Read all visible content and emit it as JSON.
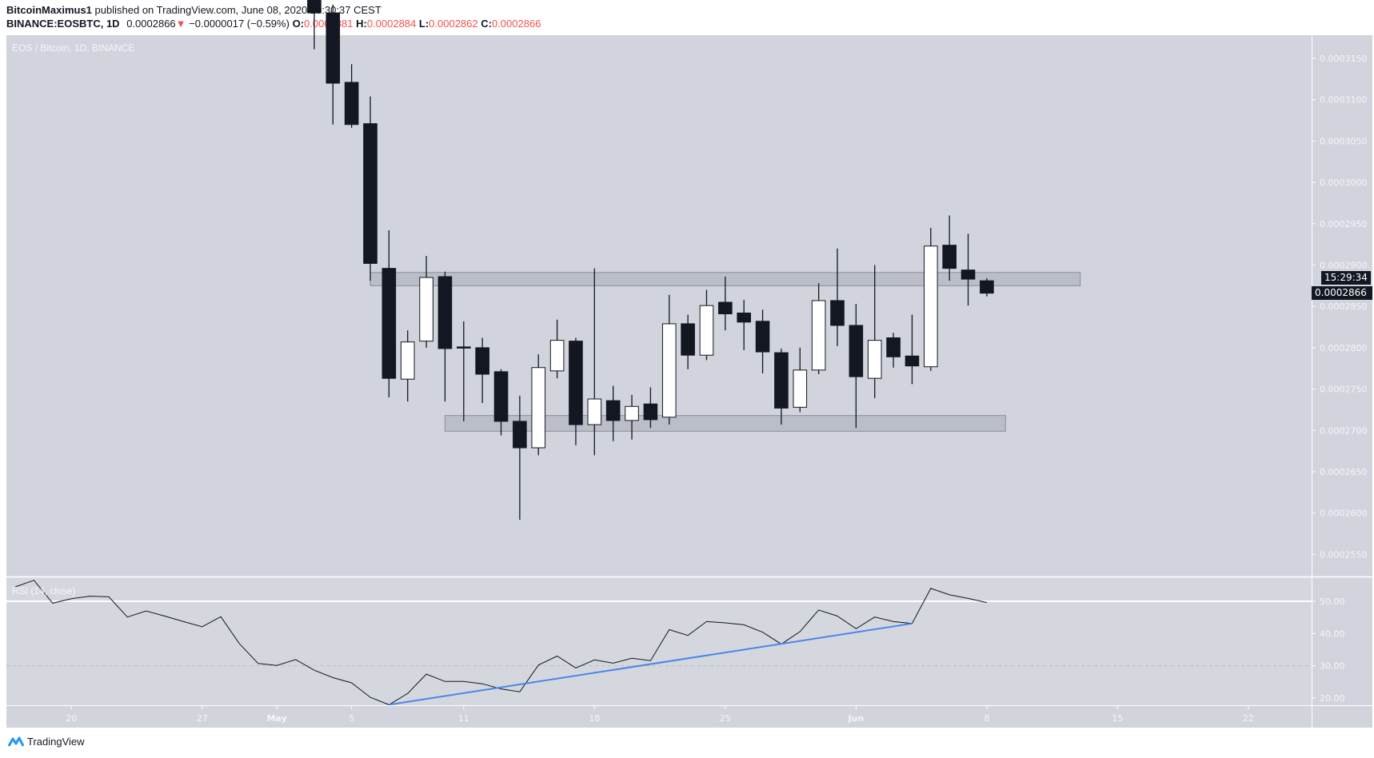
{
  "header": {
    "author": "BitcoinMaximus1",
    "published_text": "published on TradingView.com, June 08, 2020 10:30:37 CEST",
    "symbol": "BINANCE:EOSBTC, 1D",
    "last": "0.0002866",
    "direction_icon": "triangle-down-icon",
    "change": "−0.0000017 (−0.59%)",
    "open_label": "O:",
    "open": "0.0002881",
    "high_label": "H:",
    "high": "0.0002884",
    "low_label": "L:",
    "low": "0.0002862",
    "close_label": "C:",
    "close": "0.0002866"
  },
  "chart": {
    "title": "EOS / Bitcoin, 1D, BINANCE",
    "last_price_label": "0.0002866",
    "countdown": "15:29:34",
    "rsi_label": "RSI (14, close)",
    "footer_logo": "TradingView"
  },
  "colors": {
    "background": "#d1d4dc",
    "bear_candle": "#131722",
    "bull_candle": "#ffffff",
    "trendline": "#4a86e8",
    "negative": "#ef5350"
  },
  "chart_data": [
    {
      "type": "candlestick",
      "title": "EOS / Bitcoin, 1D, BINANCE",
      "ylim": [
        0.000252,
        0.000317
      ],
      "price_ticks": [
        "0.0003150",
        "0.0003100",
        "0.0003050",
        "0.0003000",
        "0.0002950",
        "0.0002900",
        "0.0002850",
        "0.0002800",
        "0.0002750",
        "0.0002700",
        "0.0002650",
        "0.0002600",
        "0.0002550"
      ],
      "x_ticks": [
        {
          "date": "2020-04-20",
          "label": "20"
        },
        {
          "date": "2020-04-27",
          "label": "27"
        },
        {
          "date": "2020-05-01",
          "label": "May"
        },
        {
          "date": "2020-05-05",
          "label": "5"
        },
        {
          "date": "2020-05-11",
          "label": "11"
        },
        {
          "date": "2020-05-18",
          "label": "18"
        },
        {
          "date": "2020-05-25",
          "label": "25"
        },
        {
          "date": "2020-06-01",
          "label": "Jun"
        },
        {
          "date": "2020-06-08",
          "label": "8"
        },
        {
          "date": "2020-06-15",
          "label": "15"
        },
        {
          "date": "2020-06-22",
          "label": "22"
        }
      ],
      "candles": [
        {
          "date": "2020-05-03",
          "o": 0.000324,
          "h": 0.0003265,
          "l": 0.0003161,
          "c": 0.0003205
        },
        {
          "date": "2020-05-04",
          "o": 0.0003205,
          "h": 0.0003215,
          "l": 0.000307,
          "c": 0.000312
        },
        {
          "date": "2020-05-05",
          "o": 0.0003121,
          "h": 0.0003143,
          "l": 0.0003066,
          "c": 0.000307
        },
        {
          "date": "2020-05-06",
          "o": 0.0003071,
          "h": 0.0003104,
          "l": 0.0002881,
          "c": 0.0002902
        },
        {
          "date": "2020-05-07",
          "o": 0.0002896,
          "h": 0.0002942,
          "l": 0.000274,
          "c": 0.0002763
        },
        {
          "date": "2020-05-08",
          "o": 0.0002762,
          "h": 0.0002821,
          "l": 0.0002735,
          "c": 0.0002807
        },
        {
          "date": "2020-05-09",
          "o": 0.0002808,
          "h": 0.0002911,
          "l": 0.00028,
          "c": 0.0002885
        },
        {
          "date": "2020-05-10",
          "o": 0.0002886,
          "h": 0.0002892,
          "l": 0.0002735,
          "c": 0.0002799
        },
        {
          "date": "2020-05-11",
          "o": 0.0002801,
          "h": 0.0002832,
          "l": 0.0002711,
          "c": 0.00028
        },
        {
          "date": "2020-05-12",
          "o": 0.00028,
          "h": 0.0002812,
          "l": 0.0002733,
          "c": 0.0002768
        },
        {
          "date": "2020-05-13",
          "o": 0.0002771,
          "h": 0.0002774,
          "l": 0.0002694,
          "c": 0.0002711
        },
        {
          "date": "2020-05-14",
          "o": 0.0002711,
          "h": 0.0002742,
          "l": 0.0002592,
          "c": 0.0002679
        },
        {
          "date": "2020-05-15",
          "o": 0.0002679,
          "h": 0.0002792,
          "l": 0.000267,
          "c": 0.0002776
        },
        {
          "date": "2020-05-16",
          "o": 0.0002772,
          "h": 0.0002834,
          "l": 0.0002763,
          "c": 0.0002809
        },
        {
          "date": "2020-05-17",
          "o": 0.0002808,
          "h": 0.0002812,
          "l": 0.0002682,
          "c": 0.0002707
        },
        {
          "date": "2020-05-18",
          "o": 0.0002707,
          "h": 0.0002896,
          "l": 0.000267,
          "c": 0.0002738
        },
        {
          "date": "2020-05-19",
          "o": 0.0002736,
          "h": 0.0002754,
          "l": 0.0002687,
          "c": 0.0002712
        },
        {
          "date": "2020-05-20",
          "o": 0.0002712,
          "h": 0.0002743,
          "l": 0.0002689,
          "c": 0.0002729
        },
        {
          "date": "2020-05-21",
          "o": 0.0002732,
          "h": 0.0002752,
          "l": 0.0002703,
          "c": 0.0002713
        },
        {
          "date": "2020-05-22",
          "o": 0.0002716,
          "h": 0.0002864,
          "l": 0.0002707,
          "c": 0.0002829
        },
        {
          "date": "2020-05-23",
          "o": 0.0002829,
          "h": 0.000284,
          "l": 0.0002774,
          "c": 0.0002791
        },
        {
          "date": "2020-05-24",
          "o": 0.0002791,
          "h": 0.000287,
          "l": 0.0002785,
          "c": 0.0002851
        },
        {
          "date": "2020-05-25",
          "o": 0.0002855,
          "h": 0.0002886,
          "l": 0.0002821,
          "c": 0.0002841
        },
        {
          "date": "2020-05-26",
          "o": 0.0002842,
          "h": 0.0002858,
          "l": 0.0002797,
          "c": 0.0002831
        },
        {
          "date": "2020-05-27",
          "o": 0.0002832,
          "h": 0.0002846,
          "l": 0.0002769,
          "c": 0.0002795
        },
        {
          "date": "2020-05-28",
          "o": 0.0002794,
          "h": 0.0002799,
          "l": 0.0002707,
          "c": 0.0002727
        },
        {
          "date": "2020-05-29",
          "o": 0.0002728,
          "h": 0.00028,
          "l": 0.0002722,
          "c": 0.0002773
        },
        {
          "date": "2020-05-30",
          "o": 0.0002773,
          "h": 0.0002878,
          "l": 0.0002768,
          "c": 0.0002857
        },
        {
          "date": "2020-05-31",
          "o": 0.0002857,
          "h": 0.000292,
          "l": 0.0002802,
          "c": 0.0002827
        },
        {
          "date": "2020-06-01",
          "o": 0.0002827,
          "h": 0.0002853,
          "l": 0.0002703,
          "c": 0.0002765
        },
        {
          "date": "2020-06-02",
          "o": 0.0002763,
          "h": 0.00029,
          "l": 0.0002739,
          "c": 0.0002809
        },
        {
          "date": "2020-06-03",
          "o": 0.0002812,
          "h": 0.0002818,
          "l": 0.0002776,
          "c": 0.0002789
        },
        {
          "date": "2020-06-04",
          "o": 0.000279,
          "h": 0.000284,
          "l": 0.0002756,
          "c": 0.0002778
        },
        {
          "date": "2020-06-05",
          "o": 0.0002777,
          "h": 0.0002945,
          "l": 0.0002772,
          "c": 0.0002923
        },
        {
          "date": "2020-06-06",
          "o": 0.0002924,
          "h": 0.000296,
          "l": 0.0002881,
          "c": 0.0002896
        },
        {
          "date": "2020-06-07",
          "o": 0.0002894,
          "h": 0.0002938,
          "l": 0.0002851,
          "c": 0.0002883
        },
        {
          "date": "2020-06-08",
          "o": 0.0002881,
          "h": 0.0002884,
          "l": 0.0002862,
          "c": 0.0002866
        }
      ],
      "zones": [
        {
          "name": "resistance",
          "from": "2020-05-06",
          "to": "2020-06-13",
          "low": 0.0002875,
          "high": 0.0002891
        },
        {
          "name": "support",
          "from": "2020-05-10",
          "to": "2020-06-09",
          "low": 0.0002699,
          "high": 0.0002718
        }
      ]
    },
    {
      "type": "line",
      "title": "RSI (14, close)",
      "ylim": [
        17,
        58
      ],
      "y_ticks": [
        "50.00",
        "40.00",
        "30.00",
        "20.00"
      ],
      "levels": {
        "solid": 50,
        "dashed": 30
      },
      "start_date": "2020-04-17",
      "values": [
        54.5,
        56.5,
        49.4,
        50.8,
        51.6,
        51.4,
        45.1,
        47.0,
        45.4,
        43.7,
        42.1,
        45.2,
        36.8,
        30.7,
        30.1,
        31.9,
        28.6,
        26.3,
        24.7,
        20.2,
        17.9,
        21.4,
        27.4,
        25.1,
        25.1,
        24.4,
        22.8,
        21.9,
        30.2,
        33.0,
        29.3,
        31.8,
        30.8,
        32.3,
        31.6,
        41.2,
        39.4,
        43.7,
        43.3,
        42.7,
        40.4,
        36.7,
        40.6,
        47.3,
        45.4,
        41.5,
        45.1,
        43.7,
        43.1,
        54.0,
        52.0,
        50.9,
        49.6
      ],
      "trendline": {
        "from": {
          "date": "2020-05-07",
          "value": 17.9
        },
        "to": {
          "date": "2020-06-04",
          "value": 43.1
        }
      }
    }
  ]
}
